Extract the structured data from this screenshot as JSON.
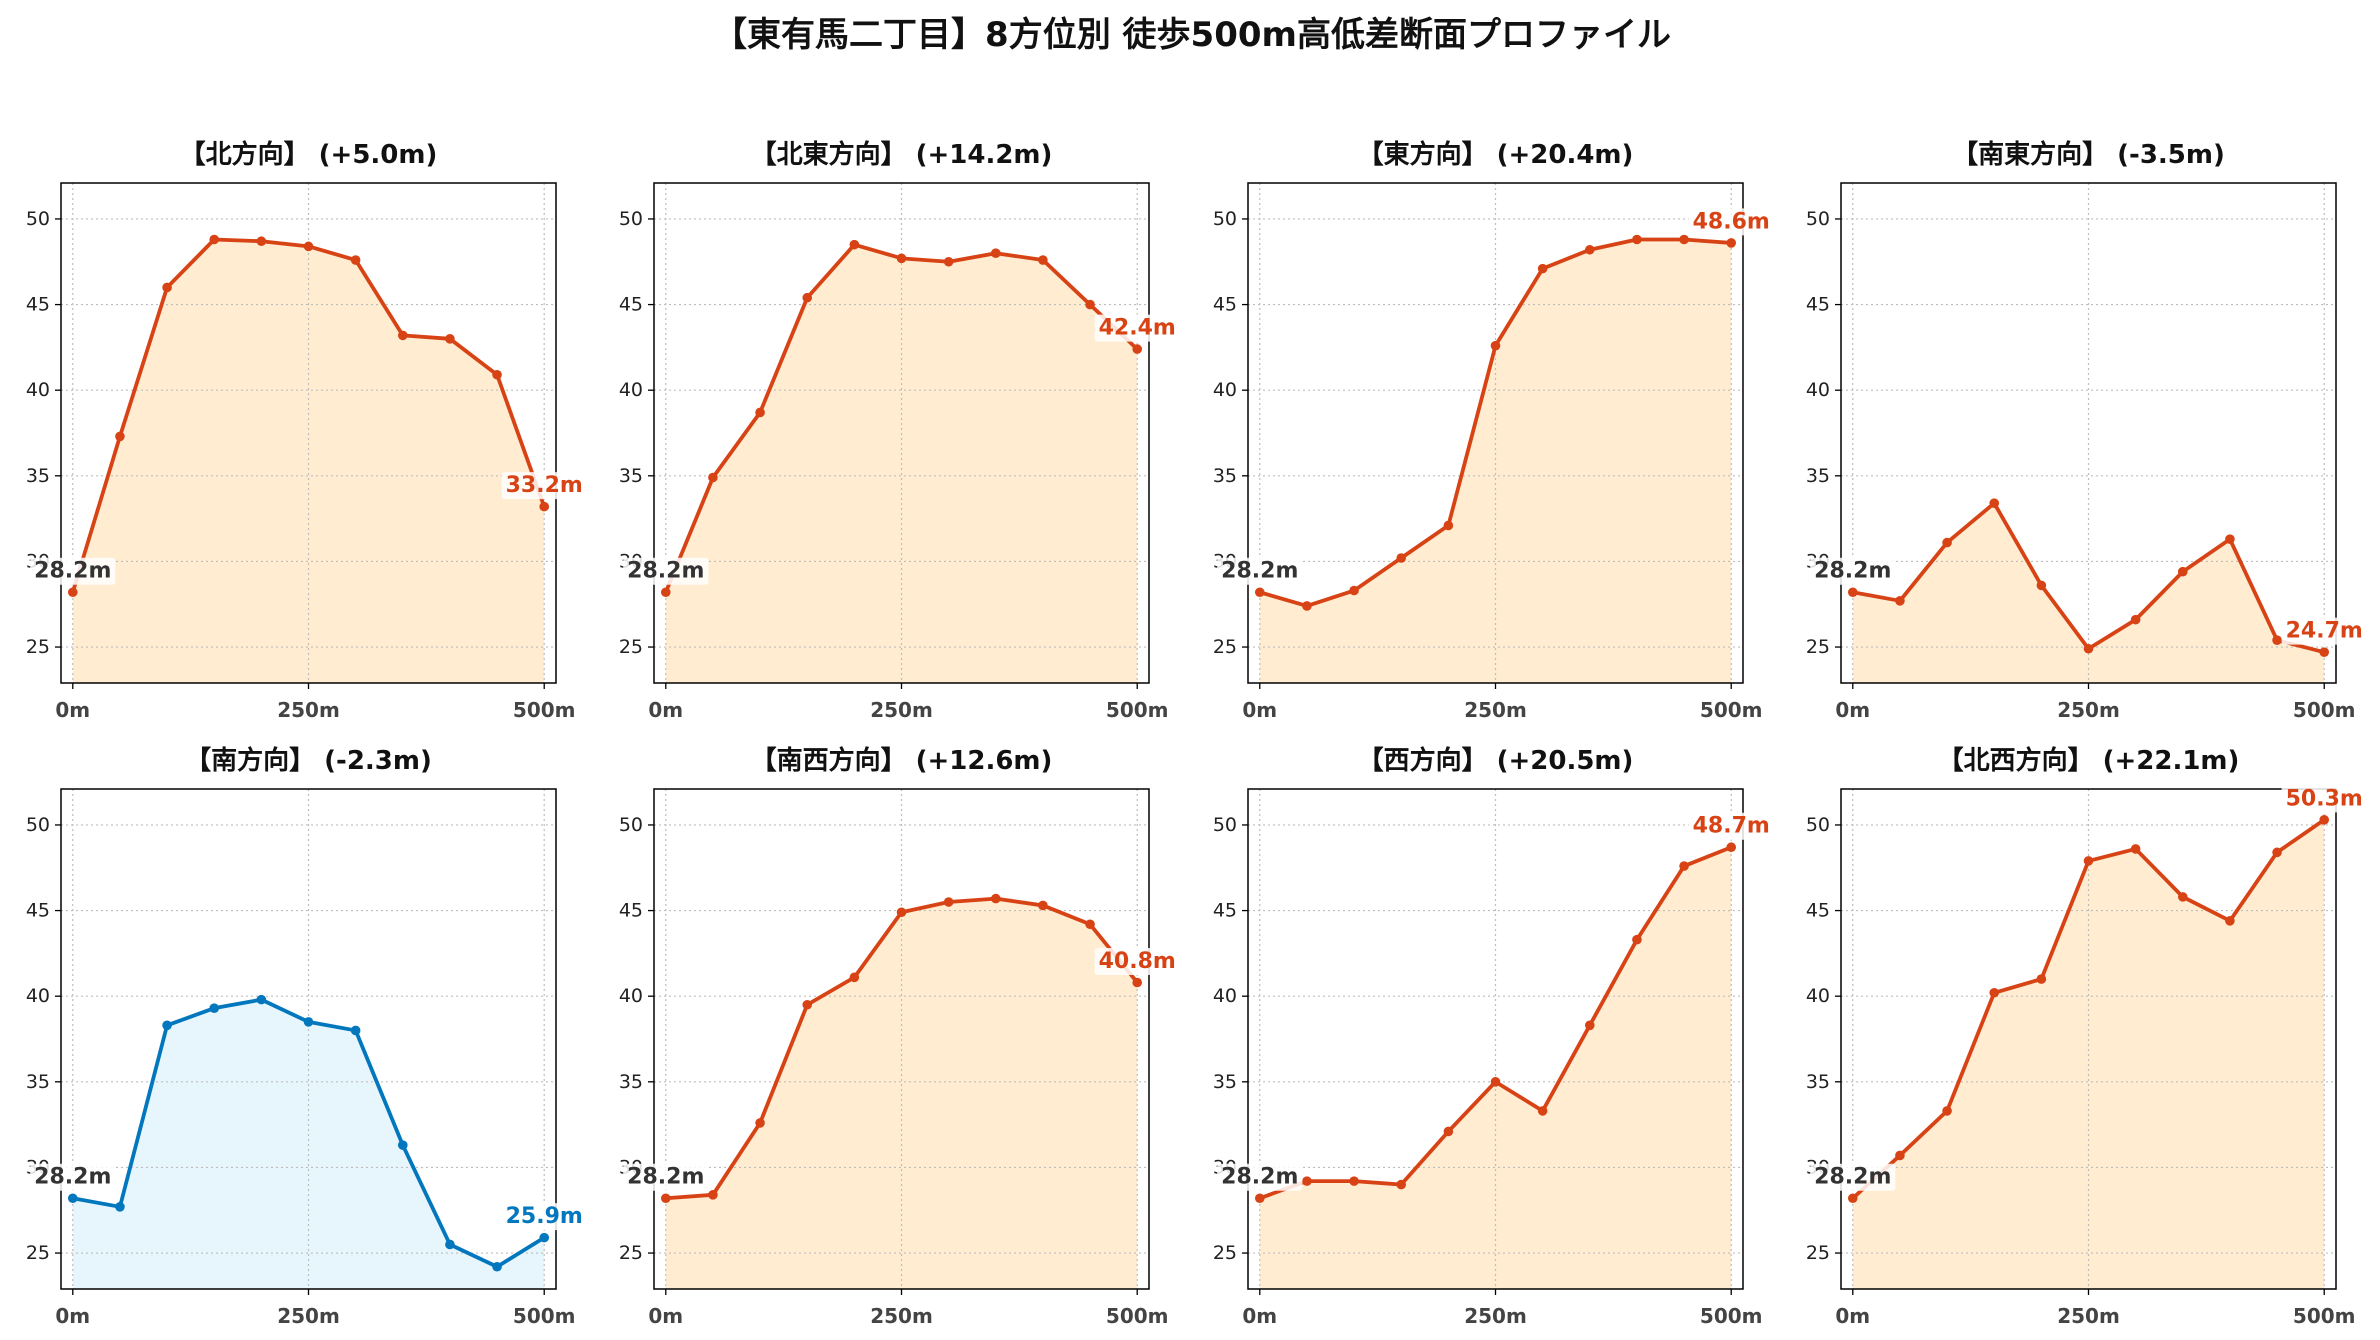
{
  "title": "【東有馬二丁目】8方位別 徒歩500m高低差断面プロファイル",
  "chart_data": [
    {
      "type": "line",
      "title": "【北方向】 (+5.0m)",
      "x": [
        0,
        50,
        100,
        150,
        200,
        250,
        300,
        350,
        400,
        450,
        500
      ],
      "values": [
        28.2,
        37.3,
        46.0,
        48.8,
        48.7,
        48.4,
        47.6,
        43.2,
        43.0,
        40.9,
        33.2
      ],
      "x_ticks": [
        0,
        250,
        500
      ],
      "x_tick_labels": [
        "0m",
        "250m",
        "500m"
      ],
      "y_ticks": [
        25,
        30,
        35,
        40,
        45,
        50
      ],
      "xlim": [
        -12.5,
        512.5
      ],
      "ylim": [
        22.9,
        52.1
      ],
      "grid": true,
      "start_label": "28.2m",
      "end_label": "33.2m",
      "line_color": "#d84315",
      "fill_color": "#ffecd1",
      "start_label_color": "#333333"
    },
    {
      "type": "line",
      "title": "【北東方向】 (+14.2m)",
      "x": [
        0,
        50,
        100,
        150,
        200,
        250,
        300,
        350,
        400,
        450,
        500
      ],
      "values": [
        28.2,
        34.9,
        38.7,
        45.4,
        48.5,
        47.7,
        47.5,
        48.0,
        47.6,
        45.0,
        42.4
      ],
      "x_ticks": [
        0,
        250,
        500
      ],
      "x_tick_labels": [
        "0m",
        "250m",
        "500m"
      ],
      "y_ticks": [
        25,
        30,
        35,
        40,
        45,
        50
      ],
      "xlim": [
        -12.5,
        512.5
      ],
      "ylim": [
        22.9,
        52.1
      ],
      "grid": true,
      "start_label": "28.2m",
      "end_label": "42.4m",
      "line_color": "#d84315",
      "fill_color": "#ffecd1",
      "start_label_color": "#333333"
    },
    {
      "type": "line",
      "title": "【東方向】 (+20.4m)",
      "x": [
        0,
        50,
        100,
        150,
        200,
        250,
        300,
        350,
        400,
        450,
        500
      ],
      "values": [
        28.2,
        27.4,
        28.3,
        30.2,
        32.1,
        42.6,
        47.1,
        48.2,
        48.8,
        48.8,
        48.6
      ],
      "x_ticks": [
        0,
        250,
        500
      ],
      "x_tick_labels": [
        "0m",
        "250m",
        "500m"
      ],
      "y_ticks": [
        25,
        30,
        35,
        40,
        45,
        50
      ],
      "xlim": [
        -12.5,
        512.5
      ],
      "ylim": [
        22.9,
        52.1
      ],
      "grid": true,
      "start_label": "28.2m",
      "end_label": "48.6m",
      "line_color": "#d84315",
      "fill_color": "#ffecd1",
      "start_label_color": "#333333"
    },
    {
      "type": "line",
      "title": "【南東方向】 (-3.5m)",
      "x": [
        0,
        50,
        100,
        150,
        200,
        250,
        300,
        350,
        400,
        450,
        500
      ],
      "values": [
        28.2,
        27.7,
        31.1,
        33.4,
        28.6,
        24.9,
        26.6,
        29.4,
        31.3,
        25.4,
        24.7
      ],
      "x_ticks": [
        0,
        250,
        500
      ],
      "x_tick_labels": [
        "0m",
        "250m",
        "500m"
      ],
      "y_ticks": [
        25,
        30,
        35,
        40,
        45,
        50
      ],
      "xlim": [
        -12.5,
        512.5
      ],
      "ylim": [
        22.9,
        52.1
      ],
      "grid": true,
      "start_label": "28.2m",
      "end_label": "24.7m",
      "line_color": "#d84315",
      "fill_color": "#ffecd1",
      "start_label_color": "#333333"
    },
    {
      "type": "line",
      "title": "【南方向】 (-2.3m)",
      "x": [
        0,
        50,
        100,
        150,
        200,
        250,
        300,
        350,
        400,
        450,
        500
      ],
      "values": [
        28.2,
        27.7,
        38.3,
        39.3,
        39.8,
        38.5,
        38.0,
        31.3,
        25.5,
        24.2,
        25.9
      ],
      "x_ticks": [
        0,
        250,
        500
      ],
      "x_tick_labels": [
        "0m",
        "250m",
        "500m"
      ],
      "y_ticks": [
        25,
        30,
        35,
        40,
        45,
        50
      ],
      "xlim": [
        -12.5,
        512.5
      ],
      "ylim": [
        22.9,
        52.1
      ],
      "grid": true,
      "start_label": "28.2m",
      "end_label": "25.9m",
      "line_color": "#0277bd",
      "fill_color": "#e7f6fc",
      "start_label_color": "#333333"
    },
    {
      "type": "line",
      "title": "【南西方向】 (+12.6m)",
      "x": [
        0,
        50,
        100,
        150,
        200,
        250,
        300,
        350,
        400,
        450,
        500
      ],
      "values": [
        28.2,
        28.4,
        32.6,
        39.5,
        41.1,
        44.9,
        45.5,
        45.7,
        45.3,
        44.2,
        40.8
      ],
      "x_ticks": [
        0,
        250,
        500
      ],
      "x_tick_labels": [
        "0m",
        "250m",
        "500m"
      ],
      "y_ticks": [
        25,
        30,
        35,
        40,
        45,
        50
      ],
      "xlim": [
        -12.5,
        512.5
      ],
      "ylim": [
        22.9,
        52.1
      ],
      "grid": true,
      "start_label": "28.2m",
      "end_label": "40.8m",
      "line_color": "#d84315",
      "fill_color": "#ffecd1",
      "start_label_color": "#333333"
    },
    {
      "type": "line",
      "title": "【西方向】 (+20.5m)",
      "x": [
        0,
        50,
        100,
        150,
        200,
        250,
        300,
        350,
        400,
        450,
        500
      ],
      "values": [
        28.2,
        29.2,
        29.2,
        29.0,
        32.1,
        35.0,
        33.3,
        38.3,
        43.3,
        47.6,
        48.7
      ],
      "x_ticks": [
        0,
        250,
        500
      ],
      "x_tick_labels": [
        "0m",
        "250m",
        "500m"
      ],
      "y_ticks": [
        25,
        30,
        35,
        40,
        45,
        50
      ],
      "xlim": [
        -12.5,
        512.5
      ],
      "ylim": [
        22.9,
        52.1
      ],
      "grid": true,
      "start_label": "28.2m",
      "end_label": "48.7m",
      "line_color": "#d84315",
      "fill_color": "#ffecd1",
      "start_label_color": "#333333"
    },
    {
      "type": "line",
      "title": "【北西方向】 (+22.1m)",
      "x": [
        0,
        50,
        100,
        150,
        200,
        250,
        300,
        350,
        400,
        450,
        500
      ],
      "values": [
        28.2,
        30.7,
        33.3,
        40.2,
        41.0,
        47.9,
        48.6,
        45.8,
        44.4,
        48.4,
        50.3
      ],
      "x_ticks": [
        0,
        250,
        500
      ],
      "x_tick_labels": [
        "0m",
        "250m",
        "500m"
      ],
      "y_ticks": [
        25,
        30,
        35,
        40,
        45,
        50
      ],
      "xlim": [
        -12.5,
        512.5
      ],
      "ylim": [
        22.9,
        52.1
      ],
      "grid": true,
      "start_label": "28.2m",
      "end_label": "50.3m",
      "line_color": "#d84315",
      "fill_color": "#ffecd1",
      "start_label_color": "#333333"
    }
  ]
}
